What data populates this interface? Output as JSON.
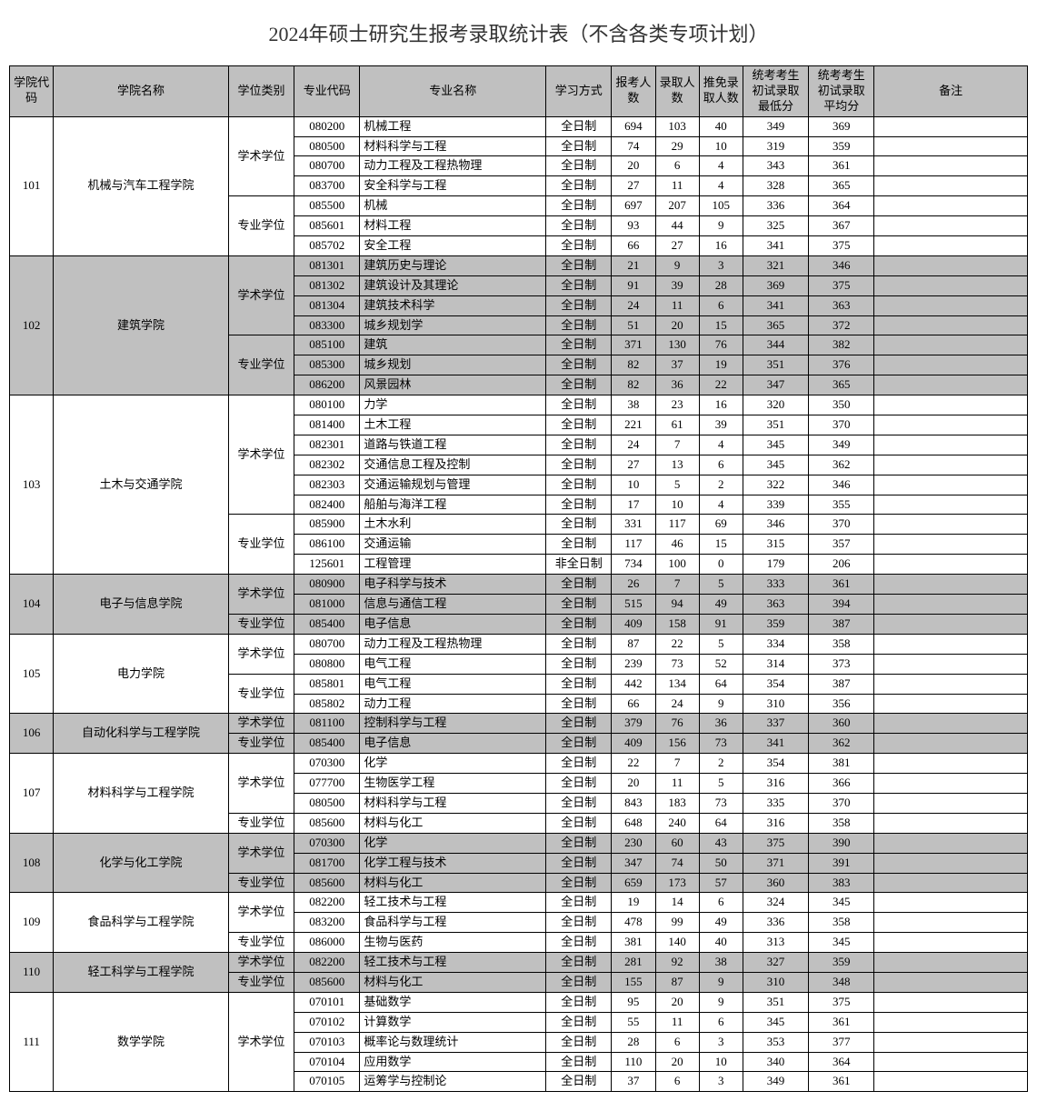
{
  "title": "2024年硕士研究生报考录取统计表（不含各类专项计划）",
  "headers": {
    "col1": "学院代码",
    "col2": "学院名称",
    "col3": "学位类别",
    "col4": "专业代码",
    "col5": "专业名称",
    "col6": "学习方式",
    "col7": "报考人数",
    "col8": "录取人数",
    "col9": "推免录取人数",
    "col10": "统考考生初试录取最低分",
    "col11": "统考考生初试录取平均分",
    "col12": "备注"
  },
  "colleges": [
    {
      "code": "101",
      "name": "机械与汽车工程学院",
      "shade": false,
      "groups": [
        {
          "degType": "学术学位",
          "rows": [
            {
              "mc": "080200",
              "mn": "机械工程",
              "mo": "全日制",
              "a": "694",
              "b": "103",
              "c": "40",
              "d": "349",
              "e": "369",
              "r": ""
            },
            {
              "mc": "080500",
              "mn": "材料科学与工程",
              "mo": "全日制",
              "a": "74",
              "b": "29",
              "c": "10",
              "d": "319",
              "e": "359",
              "r": ""
            },
            {
              "mc": "080700",
              "mn": "动力工程及工程热物理",
              "mo": "全日制",
              "a": "20",
              "b": "6",
              "c": "4",
              "d": "343",
              "e": "361",
              "r": ""
            },
            {
              "mc": "083700",
              "mn": "安全科学与工程",
              "mo": "全日制",
              "a": "27",
              "b": "11",
              "c": "4",
              "d": "328",
              "e": "365",
              "r": ""
            }
          ]
        },
        {
          "degType": "专业学位",
          "rows": [
            {
              "mc": "085500",
              "mn": "机械",
              "mo": "全日制",
              "a": "697",
              "b": "207",
              "c": "105",
              "d": "336",
              "e": "364",
              "r": ""
            },
            {
              "mc": "085601",
              "mn": "材料工程",
              "mo": "全日制",
              "a": "93",
              "b": "44",
              "c": "9",
              "d": "325",
              "e": "367",
              "r": ""
            },
            {
              "mc": "085702",
              "mn": "安全工程",
              "mo": "全日制",
              "a": "66",
              "b": "27",
              "c": "16",
              "d": "341",
              "e": "375",
              "r": ""
            }
          ]
        }
      ]
    },
    {
      "code": "102",
      "name": "建筑学院",
      "shade": true,
      "groups": [
        {
          "degType": "学术学位",
          "rows": [
            {
              "mc": "081301",
              "mn": "建筑历史与理论",
              "mo": "全日制",
              "a": "21",
              "b": "9",
              "c": "3",
              "d": "321",
              "e": "346",
              "r": ""
            },
            {
              "mc": "081302",
              "mn": "建筑设计及其理论",
              "mo": "全日制",
              "a": "91",
              "b": "39",
              "c": "28",
              "d": "369",
              "e": "375",
              "r": ""
            },
            {
              "mc": "081304",
              "mn": "建筑技术科学",
              "mo": "全日制",
              "a": "24",
              "b": "11",
              "c": "6",
              "d": "341",
              "e": "363",
              "r": ""
            },
            {
              "mc": "083300",
              "mn": "城乡规划学",
              "mo": "全日制",
              "a": "51",
              "b": "20",
              "c": "15",
              "d": "365",
              "e": "372",
              "r": ""
            }
          ]
        },
        {
          "degType": "专业学位",
          "rows": [
            {
              "mc": "085100",
              "mn": "建筑",
              "mo": "全日制",
              "a": "371",
              "b": "130",
              "c": "76",
              "d": "344",
              "e": "382",
              "r": ""
            },
            {
              "mc": "085300",
              "mn": "城乡规划",
              "mo": "全日制",
              "a": "82",
              "b": "37",
              "c": "19",
              "d": "351",
              "e": "376",
              "r": ""
            },
            {
              "mc": "086200",
              "mn": "风景园林",
              "mo": "全日制",
              "a": "82",
              "b": "36",
              "c": "22",
              "d": "347",
              "e": "365",
              "r": ""
            }
          ]
        }
      ]
    },
    {
      "code": "103",
      "name": "土木与交通学院",
      "shade": false,
      "groups": [
        {
          "degType": "学术学位",
          "rows": [
            {
              "mc": "080100",
              "mn": "力学",
              "mo": "全日制",
              "a": "38",
              "b": "23",
              "c": "16",
              "d": "320",
              "e": "350",
              "r": ""
            },
            {
              "mc": "081400",
              "mn": "土木工程",
              "mo": "全日制",
              "a": "221",
              "b": "61",
              "c": "39",
              "d": "351",
              "e": "370",
              "r": ""
            },
            {
              "mc": "082301",
              "mn": "道路与铁道工程",
              "mo": "全日制",
              "a": "24",
              "b": "7",
              "c": "4",
              "d": "345",
              "e": "349",
              "r": ""
            },
            {
              "mc": "082302",
              "mn": "交通信息工程及控制",
              "mo": "全日制",
              "a": "27",
              "b": "13",
              "c": "6",
              "d": "345",
              "e": "362",
              "r": ""
            },
            {
              "mc": "082303",
              "mn": "交通运输规划与管理",
              "mo": "全日制",
              "a": "10",
              "b": "5",
              "c": "2",
              "d": "322",
              "e": "346",
              "r": ""
            },
            {
              "mc": "082400",
              "mn": "船舶与海洋工程",
              "mo": "全日制",
              "a": "17",
              "b": "10",
              "c": "4",
              "d": "339",
              "e": "355",
              "r": ""
            }
          ]
        },
        {
          "degType": "专业学位",
          "rows": [
            {
              "mc": "085900",
              "mn": "土木水利",
              "mo": "全日制",
              "a": "331",
              "b": "117",
              "c": "69",
              "d": "346",
              "e": "370",
              "r": ""
            },
            {
              "mc": "086100",
              "mn": "交通运输",
              "mo": "全日制",
              "a": "117",
              "b": "46",
              "c": "15",
              "d": "315",
              "e": "357",
              "r": ""
            },
            {
              "mc": "125601",
              "mn": "工程管理",
              "mo": "非全日制",
              "a": "734",
              "b": "100",
              "c": "0",
              "d": "179",
              "e": "206",
              "r": ""
            }
          ]
        }
      ]
    },
    {
      "code": "104",
      "name": "电子与信息学院",
      "shade": true,
      "groups": [
        {
          "degType": "学术学位",
          "rows": [
            {
              "mc": "080900",
              "mn": "电子科学与技术",
              "mo": "全日制",
              "a": "26",
              "b": "7",
              "c": "5",
              "d": "333",
              "e": "361",
              "r": ""
            },
            {
              "mc": "081000",
              "mn": "信息与通信工程",
              "mo": "全日制",
              "a": "515",
              "b": "94",
              "c": "49",
              "d": "363",
              "e": "394",
              "r": ""
            }
          ]
        },
        {
          "degType": "专业学位",
          "rows": [
            {
              "mc": "085400",
              "mn": "电子信息",
              "mo": "全日制",
              "a": "409",
              "b": "158",
              "c": "91",
              "d": "359",
              "e": "387",
              "r": ""
            }
          ]
        }
      ]
    },
    {
      "code": "105",
      "name": "电力学院",
      "shade": false,
      "groups": [
        {
          "degType": "学术学位",
          "rows": [
            {
              "mc": "080700",
              "mn": "动力工程及工程热物理",
              "mo": "全日制",
              "a": "87",
              "b": "22",
              "c": "5",
              "d": "334",
              "e": "358",
              "r": ""
            },
            {
              "mc": "080800",
              "mn": "电气工程",
              "mo": "全日制",
              "a": "239",
              "b": "73",
              "c": "52",
              "d": "314",
              "e": "373",
              "r": ""
            }
          ]
        },
        {
          "degType": "专业学位",
          "rows": [
            {
              "mc": "085801",
              "mn": "电气工程",
              "mo": "全日制",
              "a": "442",
              "b": "134",
              "c": "64",
              "d": "354",
              "e": "387",
              "r": ""
            },
            {
              "mc": "085802",
              "mn": "动力工程",
              "mo": "全日制",
              "a": "66",
              "b": "24",
              "c": "9",
              "d": "310",
              "e": "356",
              "r": ""
            }
          ]
        }
      ]
    },
    {
      "code": "106",
      "name": "自动化科学与工程学院",
      "shade": true,
      "groups": [
        {
          "degType": "学术学位",
          "rows": [
            {
              "mc": "081100",
              "mn": "控制科学与工程",
              "mo": "全日制",
              "a": "379",
              "b": "76",
              "c": "36",
              "d": "337",
              "e": "360",
              "r": ""
            }
          ]
        },
        {
          "degType": "专业学位",
          "rows": [
            {
              "mc": "085400",
              "mn": "电子信息",
              "mo": "全日制",
              "a": "409",
              "b": "156",
              "c": "73",
              "d": "341",
              "e": "362",
              "r": ""
            }
          ]
        }
      ]
    },
    {
      "code": "107",
      "name": "材料科学与工程学院",
      "shade": false,
      "groups": [
        {
          "degType": "学术学位",
          "rows": [
            {
              "mc": "070300",
              "mn": "化学",
              "mo": "全日制",
              "a": "22",
              "b": "7",
              "c": "2",
              "d": "354",
              "e": "381",
              "r": ""
            },
            {
              "mc": "077700",
              "mn": "生物医学工程",
              "mo": "全日制",
              "a": "20",
              "b": "11",
              "c": "5",
              "d": "316",
              "e": "366",
              "r": ""
            },
            {
              "mc": "080500",
              "mn": "材料科学与工程",
              "mo": "全日制",
              "a": "843",
              "b": "183",
              "c": "73",
              "d": "335",
              "e": "370",
              "r": ""
            }
          ]
        },
        {
          "degType": "专业学位",
          "rows": [
            {
              "mc": "085600",
              "mn": "材料与化工",
              "mo": "全日制",
              "a": "648",
              "b": "240",
              "c": "64",
              "d": "316",
              "e": "358",
              "r": ""
            }
          ]
        }
      ]
    },
    {
      "code": "108",
      "name": "化学与化工学院",
      "shade": true,
      "groups": [
        {
          "degType": "学术学位",
          "rows": [
            {
              "mc": "070300",
              "mn": "化学",
              "mo": "全日制",
              "a": "230",
              "b": "60",
              "c": "43",
              "d": "375",
              "e": "390",
              "r": ""
            },
            {
              "mc": "081700",
              "mn": "化学工程与技术",
              "mo": "全日制",
              "a": "347",
              "b": "74",
              "c": "50",
              "d": "371",
              "e": "391",
              "r": ""
            }
          ]
        },
        {
          "degType": "专业学位",
          "rows": [
            {
              "mc": "085600",
              "mn": "材料与化工",
              "mo": "全日制",
              "a": "659",
              "b": "173",
              "c": "57",
              "d": "360",
              "e": "383",
              "r": ""
            }
          ]
        }
      ]
    },
    {
      "code": "109",
      "name": "食品科学与工程学院",
      "shade": false,
      "groups": [
        {
          "degType": "学术学位",
          "rows": [
            {
              "mc": "082200",
              "mn": "轻工技术与工程",
              "mo": "全日制",
              "a": "19",
              "b": "14",
              "c": "6",
              "d": "324",
              "e": "345",
              "r": ""
            },
            {
              "mc": "083200",
              "mn": "食品科学与工程",
              "mo": "全日制",
              "a": "478",
              "b": "99",
              "c": "49",
              "d": "336",
              "e": "358",
              "r": ""
            }
          ]
        },
        {
          "degType": "专业学位",
          "rows": [
            {
              "mc": "086000",
              "mn": "生物与医药",
              "mo": "全日制",
              "a": "381",
              "b": "140",
              "c": "40",
              "d": "313",
              "e": "345",
              "r": ""
            }
          ]
        }
      ]
    },
    {
      "code": "110",
      "name": "轻工科学与工程学院",
      "shade": true,
      "groups": [
        {
          "degType": "学术学位",
          "rows": [
            {
              "mc": "082200",
              "mn": "轻工技术与工程",
              "mo": "全日制",
              "a": "281",
              "b": "92",
              "c": "38",
              "d": "327",
              "e": "359",
              "r": ""
            }
          ]
        },
        {
          "degType": "专业学位",
          "rows": [
            {
              "mc": "085600",
              "mn": "材料与化工",
              "mo": "全日制",
              "a": "155",
              "b": "87",
              "c": "9",
              "d": "310",
              "e": "348",
              "r": ""
            }
          ]
        }
      ]
    },
    {
      "code": "111",
      "name": "数学学院",
      "shade": false,
      "groups": [
        {
          "degType": "学术学位",
          "rows": [
            {
              "mc": "070101",
              "mn": "基础数学",
              "mo": "全日制",
              "a": "95",
              "b": "20",
              "c": "9",
              "d": "351",
              "e": "375",
              "r": ""
            },
            {
              "mc": "070102",
              "mn": "计算数学",
              "mo": "全日制",
              "a": "55",
              "b": "11",
              "c": "6",
              "d": "345",
              "e": "361",
              "r": ""
            },
            {
              "mc": "070103",
              "mn": "概率论与数理统计",
              "mo": "全日制",
              "a": "28",
              "b": "6",
              "c": "3",
              "d": "353",
              "e": "377",
              "r": ""
            },
            {
              "mc": "070104",
              "mn": "应用数学",
              "mo": "全日制",
              "a": "110",
              "b": "20",
              "c": "10",
              "d": "340",
              "e": "364",
              "r": ""
            },
            {
              "mc": "070105",
              "mn": "运筹学与控制论",
              "mo": "全日制",
              "a": "37",
              "b": "6",
              "c": "3",
              "d": "349",
              "e": "361",
              "r": ""
            }
          ]
        }
      ]
    }
  ]
}
